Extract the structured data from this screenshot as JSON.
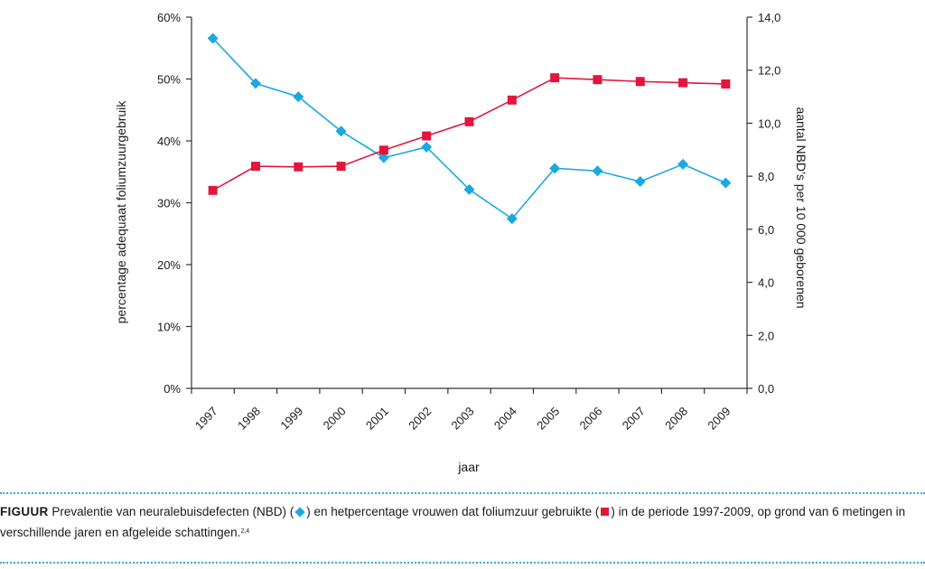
{
  "chart_data": {
    "type": "line",
    "xlabel": "jaar",
    "ylabel_left": "percentage adequaat  foliumzuurgebruik",
    "ylabel_right": "aantal NBD’s per 10 000 geborenen",
    "categories": [
      "1997",
      "1998",
      "1999",
      "2000",
      "2001",
      "2002",
      "2003",
      "2004",
      "2005",
      "2006",
      "2007",
      "2008",
      "2009"
    ],
    "y_left": {
      "ticks": [
        "0%",
        "10%",
        "20%",
        "30%",
        "40%",
        "50%",
        "60%"
      ],
      "ylim": [
        0,
        60
      ]
    },
    "y_right": {
      "ticks": [
        "0,0",
        "2,0",
        "4,0",
        "6,0",
        "8,0",
        "10,0",
        "12,0",
        "14,0"
      ],
      "ylim": [
        0,
        14
      ]
    },
    "series": [
      {
        "marker": "diamond",
        "axis": "right",
        "color": "#1aa9df",
        "values": [
          13.2,
          11.5,
          11.0,
          9.7,
          8.7,
          9.1,
          7.5,
          6.4,
          8.3,
          8.2,
          7.8,
          8.45,
          7.75
        ]
      },
      {
        "marker": "square",
        "axis": "left",
        "color": "#e2163c",
        "values": [
          32.0,
          35.9,
          35.8,
          35.9,
          38.5,
          40.8,
          43.1,
          46.6,
          50.2,
          49.9,
          49.6,
          49.4,
          49.2
        ]
      }
    ],
    "grid": false,
    "legend": "none"
  },
  "caption": {
    "label": "FIGUUR",
    "text_1": "Prevalentie van neuralebuisdefecten (NBD) (",
    "text_2": ") en hetpercentage vrouwen dat foliumzuur gebruikte (",
    "text_3": ")  in de periode 1997-2009, op grond van 6 metingen in verschillende jaren en afgeleide schattingen.",
    "refs": "2,4"
  }
}
